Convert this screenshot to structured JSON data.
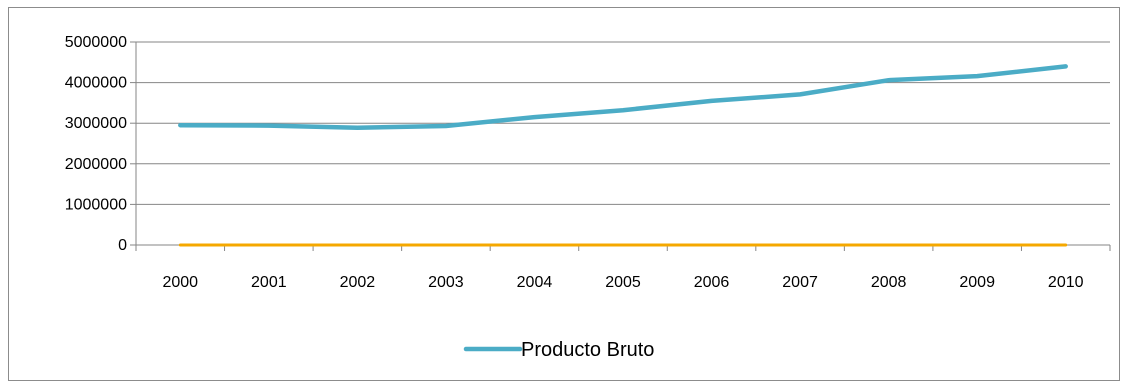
{
  "chart_data": {
    "type": "line",
    "title": "",
    "xlabel": "",
    "ylabel": "",
    "categories": [
      "2000",
      "2001",
      "2002",
      "2003",
      "2004",
      "2005",
      "2006",
      "2007",
      "2008",
      "2009",
      "2010"
    ],
    "ylim": [
      0,
      5000000
    ],
    "yticks": [
      0,
      1000000,
      2000000,
      3000000,
      4000000,
      5000000
    ],
    "ytick_labels": [
      "0",
      "1000000",
      "2000000",
      "3000000",
      "4000000",
      "5000000"
    ],
    "grid": "horizontal",
    "legend_position": "bottom",
    "series": [
      {
        "name": "Producto Bruto",
        "color": "#4bacc6",
        "values": [
          2950000,
          2940000,
          2890000,
          2930000,
          3150000,
          3320000,
          3550000,
          3710000,
          4060000,
          4160000,
          4400000
        ],
        "show_in_legend": true
      },
      {
        "color": "#f5a800",
        "values": [
          0,
          0,
          0,
          0,
          0,
          0,
          0,
          0,
          0,
          0,
          0
        ],
        "show_in_legend": false
      }
    ]
  }
}
